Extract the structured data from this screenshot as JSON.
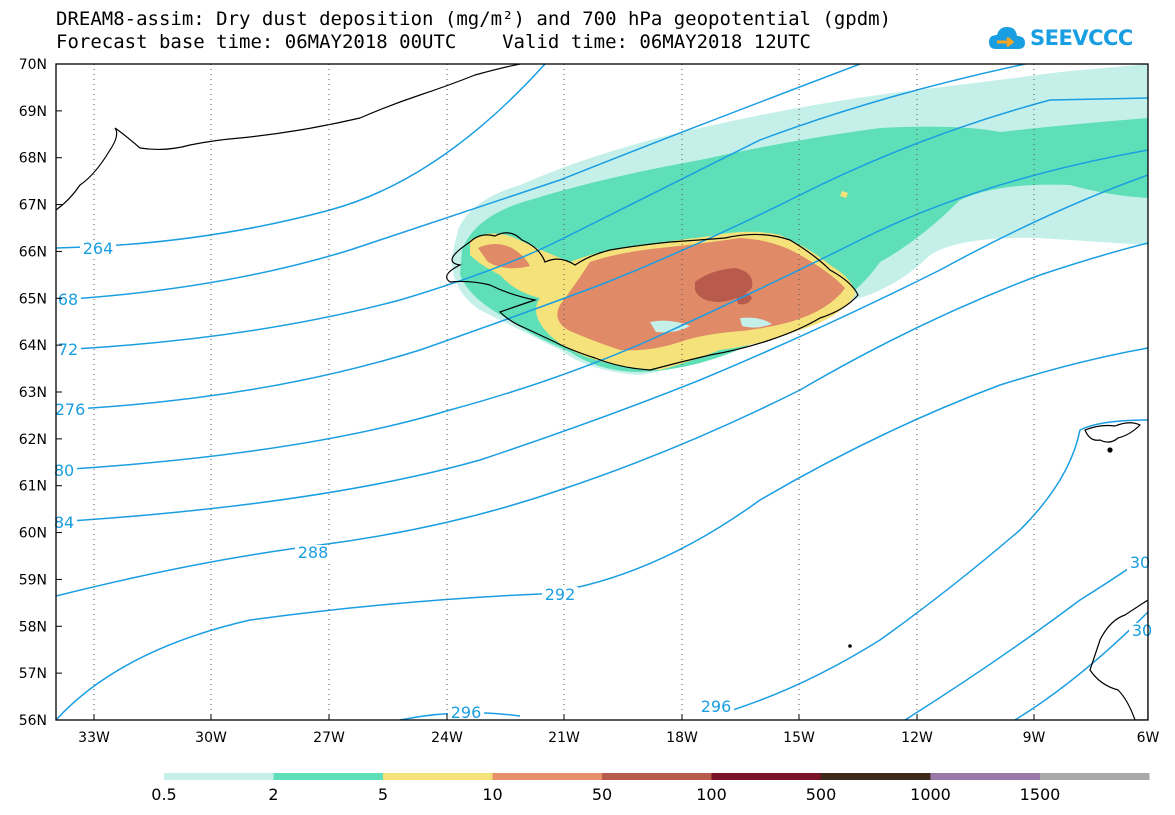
{
  "title_line1": "DREAM8-assim: Dry dust deposition (mg/m²) and 700 hPa geopotential (gpdm)",
  "title_line2": "Forecast base time: 06MAY2018 00UTC    Valid time: 06MAY2018 12UTC",
  "logo_text": "SEEVCCC",
  "map": {
    "lat_labels": [
      "70N",
      "69N",
      "68N",
      "67N",
      "66N",
      "65N",
      "64N",
      "63N",
      "62N",
      "61N",
      "60N",
      "59N",
      "58N",
      "57N",
      "56N"
    ],
    "lon_labels": [
      "33W",
      "30W",
      "27W",
      "24W",
      "21W",
      "18W",
      "15W",
      "12W",
      "9W",
      "6W"
    ],
    "contour_labels": [
      {
        "text": "264",
        "at": "lower-left"
      },
      {
        "text": "68",
        "at": "left"
      },
      {
        "text": "72",
        "at": "left"
      },
      {
        "text": "276",
        "at": "left"
      },
      {
        "text": "80",
        "at": "left"
      },
      {
        "text": "84",
        "at": "left"
      },
      {
        "text": "288",
        "at": "center-left"
      },
      {
        "text": "292",
        "at": "center"
      },
      {
        "text": "296",
        "at": "bottom-center"
      },
      {
        "text": "296",
        "at": "bottom-right"
      },
      {
        "text": "30",
        "at": "right"
      },
      {
        "text": "30",
        "at": "right-lower"
      }
    ],
    "contour_color": "#1a9ee2",
    "coast_color": "#000000"
  },
  "legend": {
    "labels": [
      "0.5",
      "2",
      "5",
      "10",
      "50",
      "100",
      "500",
      "1000",
      "1500"
    ],
    "colors": [
      "#c5f0ea",
      "#5fdfb8",
      "#f5e27a",
      "#e8906a",
      "#b85a4c",
      "#7a1228",
      "#3d2a1a",
      "#9a78a8",
      "#a8a8a8"
    ]
  },
  "colors": {
    "level_0_5": "#c5f0ea",
    "level_2": "#5fdfb8",
    "level_5": "#f5e27a",
    "level_10": "#e08a68",
    "level_50": "#b85a4c"
  }
}
